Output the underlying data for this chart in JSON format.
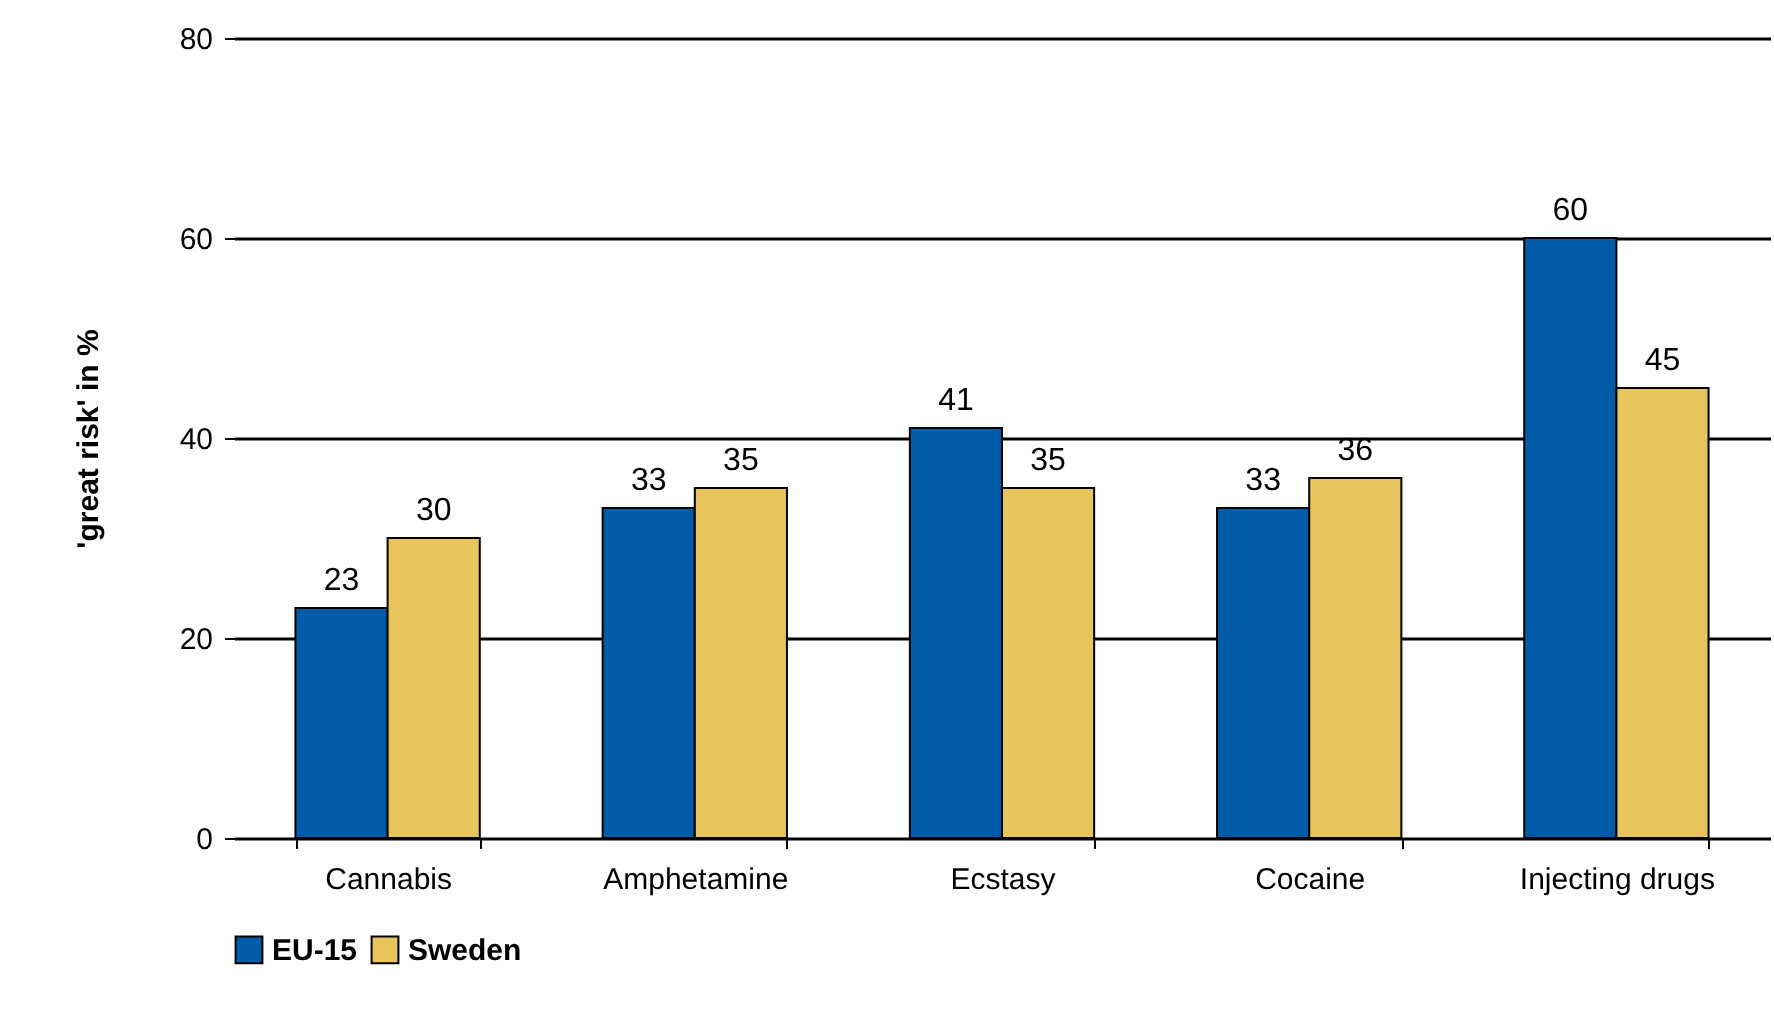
{
  "chart_data": {
    "type": "bar",
    "ylabel": "'great risk' in %",
    "categories": [
      "Cannabis",
      "Amphetamine",
      "Ecstasy",
      "Cocaine",
      "Injecting drugs"
    ],
    "series": [
      {
        "name": "EU-15",
        "color": "#005ca8",
        "values": [
          23,
          33,
          41,
          33,
          60
        ]
      },
      {
        "name": "Sweden",
        "color": "#e8c45c",
        "values": [
          30,
          35,
          35,
          36,
          45
        ]
      }
    ],
    "ylim": [
      0,
      80
    ],
    "yticks": [
      0,
      20,
      40,
      60,
      80
    ],
    "grid": "y",
    "legend": "bottom",
    "data_labels": true
  }
}
